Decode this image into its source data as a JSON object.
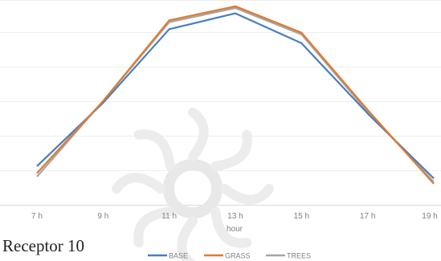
{
  "caption": "Receptor 10",
  "chart_data": {
    "type": "line",
    "categories": [
      "7 h",
      "9 h",
      "11 h",
      "13 h",
      "15 h",
      "17 h",
      "19 h"
    ],
    "xlabel": "hour",
    "ylabel": "",
    "grid": true,
    "legend_position": "bottom",
    "ylim": [
      0,
      5.6
    ],
    "series": [
      {
        "name": "BASE",
        "color": "#4a7ebb",
        "values": [
          1.1,
          2.9,
          5.0,
          5.45,
          4.6,
          2.6,
          0.75
        ]
      },
      {
        "name": "GRASS",
        "color": "#e07b30",
        "values": [
          0.9,
          2.95,
          5.25,
          5.65,
          4.9,
          2.7,
          0.6
        ]
      },
      {
        "name": "TREES",
        "color": "#a5a5a5",
        "values": [
          0.8,
          2.95,
          5.2,
          5.6,
          4.85,
          2.65,
          0.65
        ]
      }
    ],
    "watermark": "faded logo"
  }
}
